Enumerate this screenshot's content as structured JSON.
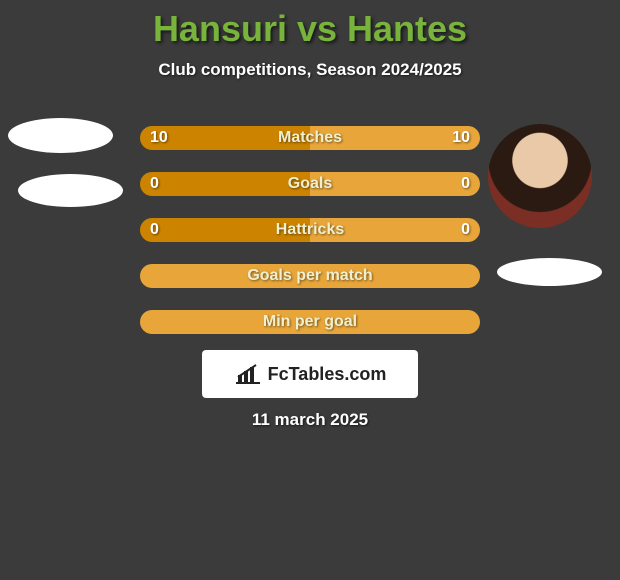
{
  "title": {
    "text": "Hansuri vs Hantes",
    "color": "#78b43c",
    "fontsize": 36
  },
  "subtitle": {
    "text": "Club competitions, Season 2024/2025",
    "color": "#ffffff",
    "fontsize": 17
  },
  "colors": {
    "bar_left": "#cc8400",
    "bar_right": "#e8a63a",
    "bar_single": "#e8a63a",
    "bar_text": "#ffffff",
    "bar_label": "#f0f0d0",
    "background": "#3b3b3b",
    "logo_bg": "#ffffff",
    "logo_text": "#222222",
    "date_text": "#ffffff"
  },
  "bars": [
    {
      "label": "Matches",
      "left": "10",
      "right": "10",
      "left_pct": 50,
      "right_pct": 50,
      "fontsize": 16
    },
    {
      "label": "Goals",
      "left": "0",
      "right": "0",
      "left_pct": 50,
      "right_pct": 50,
      "fontsize": 16
    },
    {
      "label": "Hattricks",
      "left": "0",
      "right": "0",
      "left_pct": 50,
      "right_pct": 50,
      "fontsize": 16
    },
    {
      "label": "Goals per match",
      "left": "",
      "right": "",
      "left_pct": 100,
      "right_pct": 0,
      "fontsize": 16
    },
    {
      "label": "Min per goal",
      "left": "",
      "right": "",
      "left_pct": 100,
      "right_pct": 0,
      "fontsize": 16
    }
  ],
  "logo": {
    "text": "FcTables.com",
    "fontsize": 18
  },
  "date": {
    "text": "11 march 2025",
    "fontsize": 17
  }
}
